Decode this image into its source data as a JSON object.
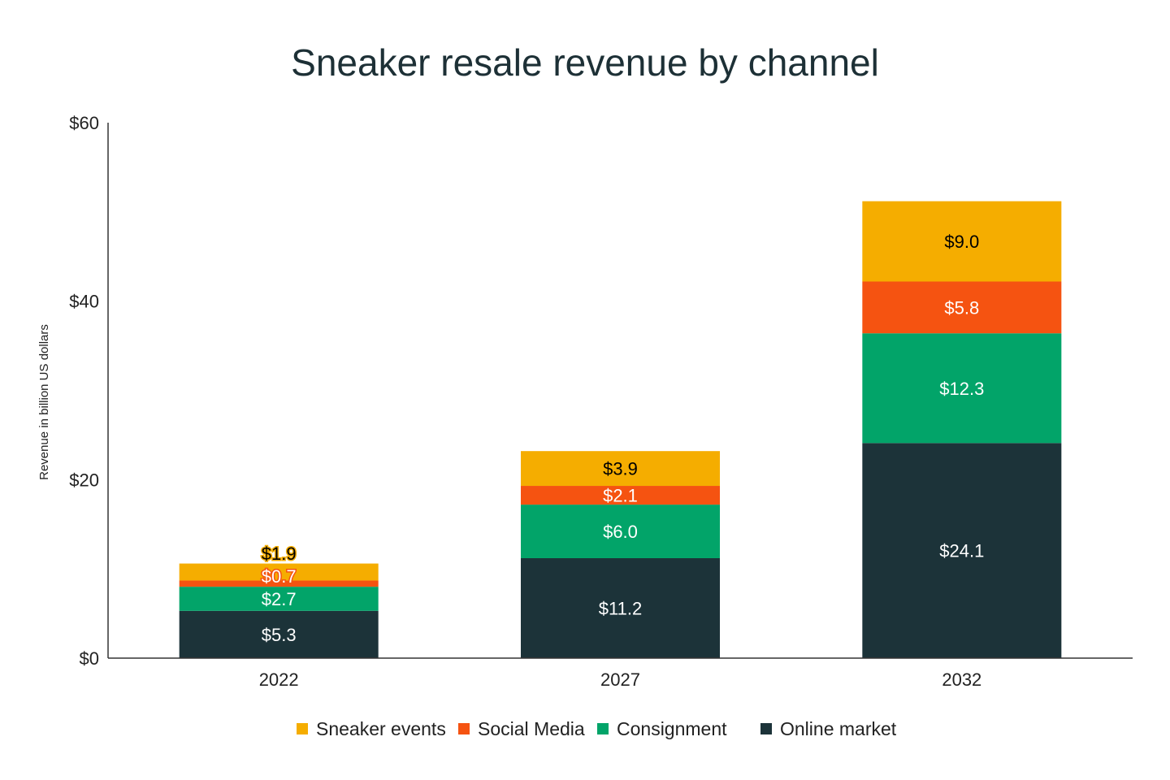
{
  "chart_data": {
    "type": "bar",
    "stacked": true,
    "title": "Sneaker resale revenue by channel",
    "xlabel": "",
    "ylabel": "Revenue in billion US dollars",
    "ylim": [
      0,
      60
    ],
    "yticks": [
      0,
      20,
      40,
      60
    ],
    "ytick_labels": [
      "$0",
      "$20",
      "$40",
      "$60"
    ],
    "categories": [
      "2022",
      "2027",
      "2032"
    ],
    "series": [
      {
        "name": "Online market",
        "color": "#1c3339",
        "label_color": "#ffffff",
        "values": [
          5.3,
          11.2,
          24.1
        ],
        "labels": [
          "$5.3",
          "$11.2",
          "$24.1"
        ]
      },
      {
        "name": "Consignment",
        "color": "#02a469",
        "label_color": "#ffffff",
        "values": [
          2.7,
          6.0,
          12.3
        ],
        "labels": [
          "$2.7",
          "$6.0",
          "$12.3"
        ]
      },
      {
        "name": "Social Media",
        "color": "#f55311",
        "label_color": "#ffffff",
        "values": [
          0.7,
          2.1,
          5.8
        ],
        "labels": [
          "$0.7",
          "$2.1",
          "$5.8"
        ]
      },
      {
        "name": "Sneaker events",
        "color": "#f5ad00",
        "label_color": "#000000",
        "values": [
          1.9,
          3.9,
          9.0
        ],
        "labels": [
          "$1.9",
          "$3.9",
          "$9.0"
        ]
      }
    ],
    "legend_order": [
      "Sneaker events",
      "Social Media",
      "Consignment",
      "Online market"
    ],
    "legend_position": "bottom",
    "grid": false
  }
}
